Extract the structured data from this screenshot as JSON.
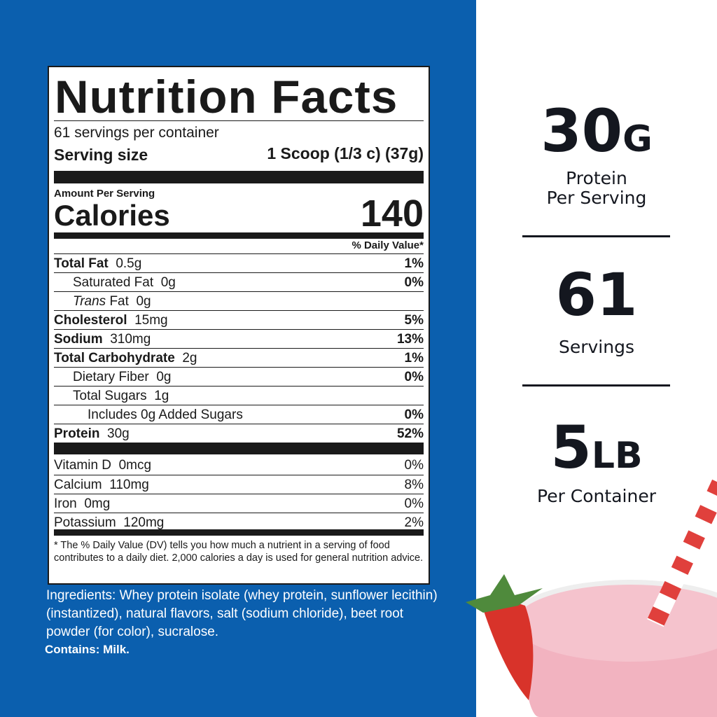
{
  "label": {
    "title": "Nutrition Facts",
    "servings_per_container": "61 servings per container",
    "serving_size_label": "Serving size",
    "serving_size_value": "1 Scoop (1/3 c) (37g)",
    "amount_per_serving": "Amount Per Serving",
    "calories_label": "Calories",
    "calories_value": "140",
    "dv_header": "% Daily Value*",
    "nutrients": [
      {
        "name": "Total Fat",
        "amount": "0.5g",
        "dv": "1%",
        "bold": true,
        "indent": 0
      },
      {
        "name": "Saturated Fat",
        "amount": "0g",
        "dv": "0%",
        "bold": false,
        "indent": 1
      },
      {
        "name": "Trans",
        "name2": "Fat",
        "amount": "0g",
        "dv": "",
        "bold": false,
        "indent": 1,
        "italic": true
      },
      {
        "name": "Cholesterol",
        "amount": "15mg",
        "dv": "5%",
        "bold": true,
        "indent": 0
      },
      {
        "name": "Sodium",
        "amount": "310mg",
        "dv": "13%",
        "bold": true,
        "indent": 0
      },
      {
        "name": "Total Carbohydrate",
        "amount": "2g",
        "dv": "1%",
        "bold": true,
        "indent": 0
      },
      {
        "name": "Dietary Fiber",
        "amount": "0g",
        "dv": "0%",
        "bold": false,
        "indent": 1
      },
      {
        "name": "Total Sugars",
        "amount": "1g",
        "dv": "",
        "bold": false,
        "indent": 1
      },
      {
        "name": "Includes 0g Added Sugars",
        "amount": "",
        "dv": "0%",
        "bold": false,
        "indent": 2
      },
      {
        "name": "Protein",
        "amount": "30g",
        "dv": "52%",
        "bold": true,
        "indent": 0
      }
    ],
    "vitamins": [
      {
        "name": "Vitamin D",
        "amount": "0mcg",
        "dv": "0%"
      },
      {
        "name": "Calcium",
        "amount": "110mg",
        "dv": "8%"
      },
      {
        "name": "Iron",
        "amount": "0mg",
        "dv": "0%"
      },
      {
        "name": "Potassium",
        "amount": "120mg",
        "dv": "2%"
      }
    ],
    "footnote": "* The % Daily Value (DV) tells you how much a nutrient in a serving of food contributes to a daily diet. 2,000 calories a day is used for general nutrition advice."
  },
  "ingredients": "Ingredients: Whey protein isolate (whey protein, sunflower lecithin)(instantized), natural flavors, salt (sodium chloride), beet root powder (for color), sucralose.",
  "contains": "Contains: Milk.",
  "highlights": [
    {
      "value": "30",
      "unit": "G",
      "caption1": "Protein",
      "caption2": "Per Serving"
    },
    {
      "value": "61",
      "unit": "",
      "caption1": "Servings",
      "caption2": ""
    },
    {
      "value": "5",
      "unit": "LB",
      "caption1": "Per Container",
      "caption2": ""
    }
  ],
  "colors": {
    "panel_blue": "#0b5fae",
    "text_dark": "#14171f",
    "shake_pink": "#f2b3c0",
    "strawberry": "#d8332a"
  }
}
